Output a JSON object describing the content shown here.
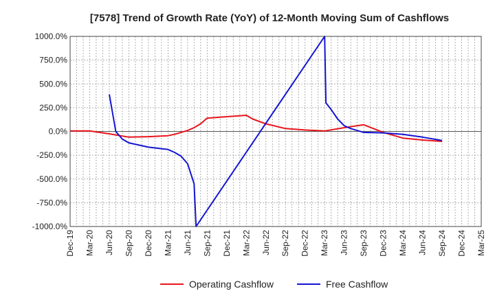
{
  "chart_data": {
    "type": "line",
    "title": "[7578]  Trend of Growth Rate (YoY) of 12-Month Moving Sum of Cashflows",
    "xlabel": "",
    "ylabel": "",
    "ylim": [
      -1000,
      1000
    ],
    "y_ticks": [
      1000,
      750,
      500,
      250,
      0,
      -250,
      -500,
      -750,
      -1000
    ],
    "y_tick_labels": [
      "1000.0%",
      "750.0%",
      "500.0%",
      "250.0%",
      "0.0%",
      "-250.0%",
      "-500.0%",
      "-750.0%",
      "-1000.0%"
    ],
    "x_tick_labels": [
      "Dec-19",
      "Mar-20",
      "Jun-20",
      "Sep-20",
      "Dec-20",
      "Mar-21",
      "Jun-21",
      "Sep-21",
      "Dec-21",
      "Mar-22",
      "Jun-22",
      "Sep-22",
      "Dec-22",
      "Mar-23",
      "Jun-23",
      "Sep-23",
      "Dec-23",
      "Mar-24",
      "Jun-24",
      "Sep-24",
      "Dec-24",
      "Mar-25"
    ],
    "x_months": [
      "2019-12",
      "2020-01",
      "2020-02",
      "2020-03",
      "2020-04",
      "2020-05",
      "2020-06",
      "2020-07",
      "2020-08",
      "2020-09",
      "2020-10",
      "2020-11",
      "2020-12",
      "2021-01",
      "2021-02",
      "2021-03",
      "2021-04",
      "2021-05",
      "2021-06",
      "2021-07",
      "2021-08",
      "2021-09",
      "2021-10",
      "2021-11",
      "2021-12",
      "2022-01",
      "2022-02",
      "2022-03",
      "2022-04",
      "2022-05",
      "2022-06",
      "2022-07",
      "2022-08",
      "2022-09",
      "2022-10",
      "2022-11",
      "2022-12",
      "2023-01",
      "2023-02",
      "2023-03",
      "2023-04",
      "2023-05",
      "2023-06",
      "2023-07",
      "2023-08",
      "2023-09",
      "2023-10",
      "2023-11",
      "2023-12",
      "2024-01",
      "2024-02",
      "2024-03",
      "2024-04",
      "2024-05",
      "2024-06",
      "2024-07",
      "2024-08",
      "2024-09",
      "2024-10",
      "2024-11",
      "2024-12",
      "2025-01",
      "2025-02",
      "2025-03"
    ],
    "grid": true,
    "legend_position": "bottom",
    "series": [
      {
        "name": "Operating Cashflow",
        "color": "#e8141b",
        "points": [
          [
            "2019-12",
            5
          ],
          [
            "2020-03",
            5
          ],
          [
            "2020-06",
            -25
          ],
          [
            "2020-09",
            -60
          ],
          [
            "2020-12",
            -55
          ],
          [
            "2021-03",
            -45
          ],
          [
            "2021-04",
            -30
          ],
          [
            "2021-05",
            -10
          ],
          [
            "2021-06",
            10
          ],
          [
            "2021-07",
            40
          ],
          [
            "2021-08",
            80
          ],
          [
            "2021-09",
            140
          ],
          [
            "2021-12",
            155
          ],
          [
            "2022-03",
            170
          ],
          [
            "2022-04",
            130
          ],
          [
            "2022-06",
            80
          ],
          [
            "2022-09",
            30
          ],
          [
            "2022-12",
            15
          ],
          [
            "2023-03",
            5
          ],
          [
            "2023-06",
            40
          ],
          [
            "2023-09",
            70
          ],
          [
            "2023-12",
            -10
          ],
          [
            "2024-03",
            -70
          ],
          [
            "2024-06",
            -90
          ],
          [
            "2024-09",
            -105
          ]
        ]
      },
      {
        "name": "Free Cashflow",
        "color": "#1414d2",
        "points": [
          [
            "2020-06",
            390
          ],
          [
            "2020-07",
            0
          ],
          [
            "2020-08",
            -80
          ],
          [
            "2020-09",
            -120
          ],
          [
            "2020-12",
            -165
          ],
          [
            "2021-03",
            -190
          ],
          [
            "2021-04",
            -220
          ],
          [
            "2021-05",
            -260
          ],
          [
            "2021-06",
            -340
          ],
          [
            "2021-07",
            -550
          ],
          [
            "2021-07.3",
            -1000
          ],
          [
            "2023-03",
            1000
          ],
          [
            "2023-03.2",
            300
          ],
          [
            "2023-04",
            230
          ],
          [
            "2023-05",
            130
          ],
          [
            "2023-06",
            60
          ],
          [
            "2023-07",
            30
          ],
          [
            "2023-09",
            -10
          ],
          [
            "2023-12",
            -15
          ],
          [
            "2024-03",
            -30
          ],
          [
            "2024-06",
            -60
          ],
          [
            "2024-09",
            -95
          ]
        ]
      }
    ]
  }
}
